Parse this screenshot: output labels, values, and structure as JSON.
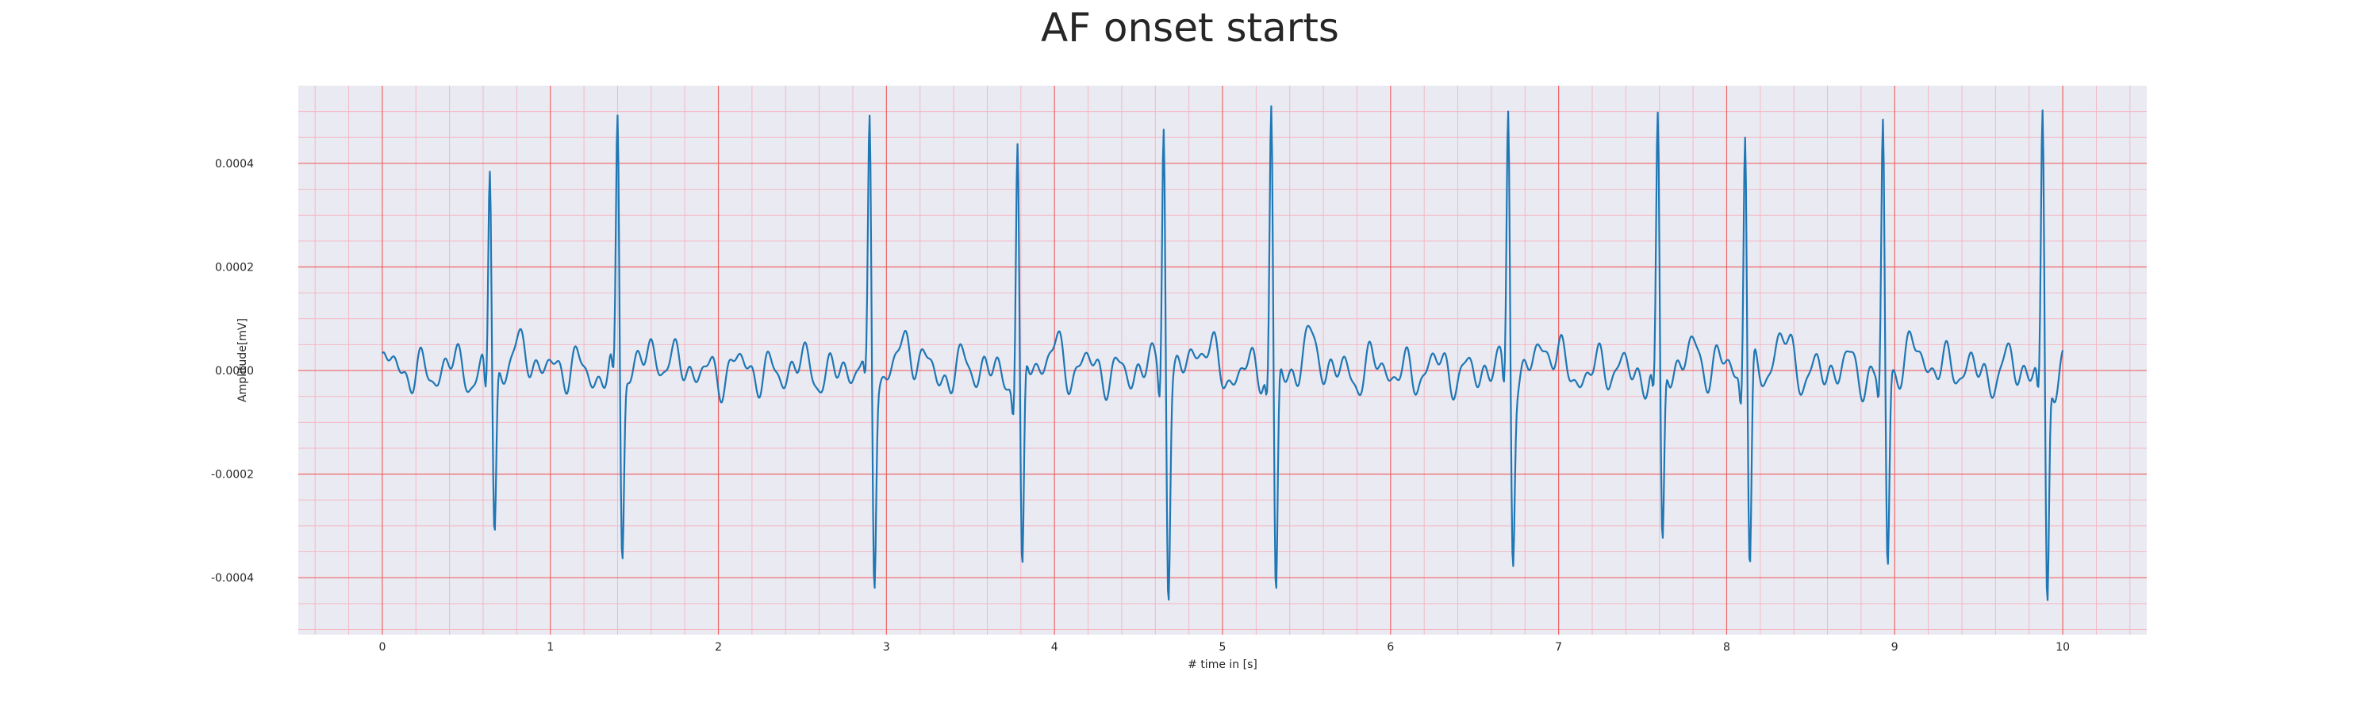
{
  "chart_data": {
    "type": "line",
    "title": "AF onset starts",
    "xlabel": "# time in [s]",
    "ylabel": "Amplitude[mV]",
    "xlim": [
      -0.5,
      10.5
    ],
    "ylim": [
      -0.00051,
      0.00055
    ],
    "xticks": [
      0,
      1,
      2,
      3,
      4,
      5,
      6,
      7,
      8,
      9,
      10
    ],
    "yticks": [
      -0.0004,
      -0.0002,
      0.0,
      0.0002,
      0.0004
    ],
    "ytick_labels": [
      "-0.0004",
      "-0.0002",
      "0.0000",
      "0.0002",
      "0.0004"
    ],
    "grid": true,
    "minor_grid": true,
    "colors": {
      "plot_background": "#eaeaf2",
      "major_grid": "#ee6666",
      "minor_grid": "#f4b8c4",
      "line": "#1f77b4"
    },
    "series": [
      {
        "beats": [
          {
            "t": 0.64,
            "peak": 0.00041,
            "trough": -0.00032
          },
          {
            "t": 1.4,
            "peak": 0.00048,
            "trough": -0.00036
          },
          {
            "t": 2.9,
            "peak": 0.00046,
            "trough": -0.00039
          },
          {
            "t": 3.78,
            "peak": 0.00044,
            "trough": -0.00044
          },
          {
            "t": 4.65,
            "peak": 0.0005,
            "trough": -0.0004
          },
          {
            "t": 5.29,
            "peak": 0.0005,
            "trough": -0.00046
          },
          {
            "t": 6.7,
            "peak": 0.0005,
            "trough": -0.00034
          },
          {
            "t": 7.59,
            "peak": 0.00047,
            "trough": -0.00037
          },
          {
            "t": 8.11,
            "peak": 0.00049,
            "trough": -0.00039
          },
          {
            "t": 8.93,
            "peak": 0.00047,
            "trough": -0.00039
          },
          {
            "t": 9.88,
            "peak": 0.0005,
            "trough": -0.00046
          }
        ],
        "baseline_wave": {
          "start": 0.0,
          "end": 10.0,
          "amplitude": 3e-05,
          "step": 0.005
        }
      }
    ]
  }
}
